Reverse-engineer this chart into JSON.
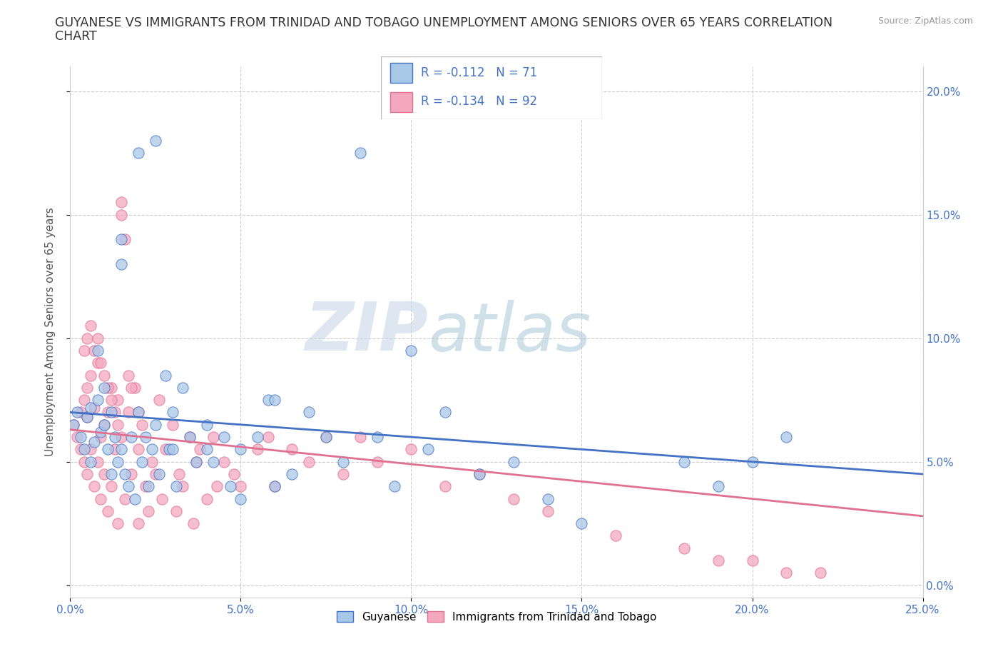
{
  "title_line1": "GUYANESE VS IMMIGRANTS FROM TRINIDAD AND TOBAGO UNEMPLOYMENT AMONG SENIORS OVER 65 YEARS CORRELATION",
  "title_line2": "CHART",
  "source": "Source: ZipAtlas.com",
  "ylabel": "Unemployment Among Seniors over 65 years",
  "xlim": [
    0.0,
    0.25
  ],
  "ylim": [
    -0.005,
    0.21
  ],
  "xticks": [
    0.0,
    0.05,
    0.1,
    0.15,
    0.2,
    0.25
  ],
  "yticks": [
    0.0,
    0.05,
    0.1,
    0.15,
    0.2
  ],
  "ytick_labels": [
    "0.0%",
    "5.0%",
    "10.0%",
    "15.0%",
    "20.0%"
  ],
  "xtick_labels": [
    "0.0%",
    "5.0%",
    "10.0%",
    "15.0%",
    "20.0%",
    "25.0%"
  ],
  "color_blue": "#A8C8E8",
  "color_pink": "#F4A8C0",
  "color_line_blue": "#4472C4",
  "color_line_pink": "#E07090",
  "R_blue": -0.112,
  "N_blue": 71,
  "R_pink": -0.134,
  "N_pink": 92,
  "legend_label_blue": "Guyanese",
  "legend_label_pink": "Immigrants from Trinidad and Tobago",
  "watermark_zip": "ZIP",
  "watermark_atlas": "atlas",
  "blue_trend_start": 0.07,
  "blue_trend_end": 0.045,
  "pink_trend_start": 0.063,
  "pink_trend_end": 0.028,
  "blue_x": [
    0.001,
    0.002,
    0.003,
    0.004,
    0.005,
    0.006,
    0.006,
    0.007,
    0.008,
    0.009,
    0.01,
    0.01,
    0.011,
    0.012,
    0.012,
    0.013,
    0.014,
    0.015,
    0.015,
    0.016,
    0.017,
    0.018,
    0.019,
    0.02,
    0.021,
    0.022,
    0.023,
    0.024,
    0.025,
    0.026,
    0.028,
    0.029,
    0.03,
    0.031,
    0.033,
    0.035,
    0.037,
    0.04,
    0.042,
    0.045,
    0.047,
    0.05,
    0.055,
    0.058,
    0.06,
    0.065,
    0.07,
    0.075,
    0.08,
    0.085,
    0.09,
    0.095,
    0.1,
    0.105,
    0.11,
    0.12,
    0.13,
    0.14,
    0.15,
    0.18,
    0.19,
    0.2,
    0.21,
    0.03,
    0.04,
    0.05,
    0.06,
    0.02,
    0.025,
    0.015,
    0.008
  ],
  "blue_y": [
    0.065,
    0.07,
    0.06,
    0.055,
    0.068,
    0.072,
    0.05,
    0.058,
    0.075,
    0.062,
    0.065,
    0.08,
    0.055,
    0.07,
    0.045,
    0.06,
    0.05,
    0.055,
    0.13,
    0.045,
    0.04,
    0.06,
    0.035,
    0.07,
    0.05,
    0.06,
    0.04,
    0.055,
    0.065,
    0.045,
    0.085,
    0.055,
    0.07,
    0.04,
    0.08,
    0.06,
    0.05,
    0.065,
    0.05,
    0.06,
    0.04,
    0.055,
    0.06,
    0.075,
    0.04,
    0.045,
    0.07,
    0.06,
    0.05,
    0.175,
    0.06,
    0.04,
    0.095,
    0.055,
    0.07,
    0.045,
    0.05,
    0.035,
    0.025,
    0.05,
    0.04,
    0.05,
    0.06,
    0.055,
    0.055,
    0.035,
    0.075,
    0.175,
    0.18,
    0.14,
    0.095
  ],
  "pink_x": [
    0.001,
    0.002,
    0.003,
    0.003,
    0.004,
    0.004,
    0.005,
    0.005,
    0.005,
    0.006,
    0.006,
    0.007,
    0.007,
    0.008,
    0.008,
    0.009,
    0.009,
    0.01,
    0.01,
    0.011,
    0.011,
    0.012,
    0.012,
    0.013,
    0.014,
    0.014,
    0.015,
    0.015,
    0.016,
    0.017,
    0.018,
    0.019,
    0.02,
    0.02,
    0.021,
    0.022,
    0.023,
    0.024,
    0.025,
    0.026,
    0.027,
    0.028,
    0.03,
    0.031,
    0.032,
    0.033,
    0.035,
    0.036,
    0.037,
    0.038,
    0.04,
    0.042,
    0.043,
    0.045,
    0.048,
    0.05,
    0.055,
    0.058,
    0.06,
    0.065,
    0.07,
    0.075,
    0.08,
    0.085,
    0.09,
    0.1,
    0.11,
    0.12,
    0.13,
    0.14,
    0.16,
    0.18,
    0.19,
    0.2,
    0.21,
    0.22,
    0.004,
    0.005,
    0.006,
    0.007,
    0.008,
    0.009,
    0.01,
    0.011,
    0.012,
    0.013,
    0.014,
    0.015,
    0.016,
    0.017,
    0.018,
    0.02
  ],
  "pink_y": [
    0.065,
    0.06,
    0.07,
    0.055,
    0.075,
    0.05,
    0.08,
    0.068,
    0.045,
    0.085,
    0.055,
    0.072,
    0.04,
    0.09,
    0.05,
    0.06,
    0.035,
    0.065,
    0.045,
    0.07,
    0.03,
    0.08,
    0.04,
    0.055,
    0.075,
    0.025,
    0.15,
    0.06,
    0.035,
    0.07,
    0.045,
    0.08,
    0.055,
    0.025,
    0.065,
    0.04,
    0.03,
    0.05,
    0.045,
    0.075,
    0.035,
    0.055,
    0.065,
    0.03,
    0.045,
    0.04,
    0.06,
    0.025,
    0.05,
    0.055,
    0.035,
    0.06,
    0.04,
    0.05,
    0.045,
    0.04,
    0.055,
    0.06,
    0.04,
    0.055,
    0.05,
    0.06,
    0.045,
    0.06,
    0.05,
    0.055,
    0.04,
    0.045,
    0.035,
    0.03,
    0.02,
    0.015,
    0.01,
    0.01,
    0.005,
    0.005,
    0.095,
    0.1,
    0.105,
    0.095,
    0.1,
    0.09,
    0.085,
    0.08,
    0.075,
    0.07,
    0.065,
    0.155,
    0.14,
    0.085,
    0.08,
    0.07
  ]
}
